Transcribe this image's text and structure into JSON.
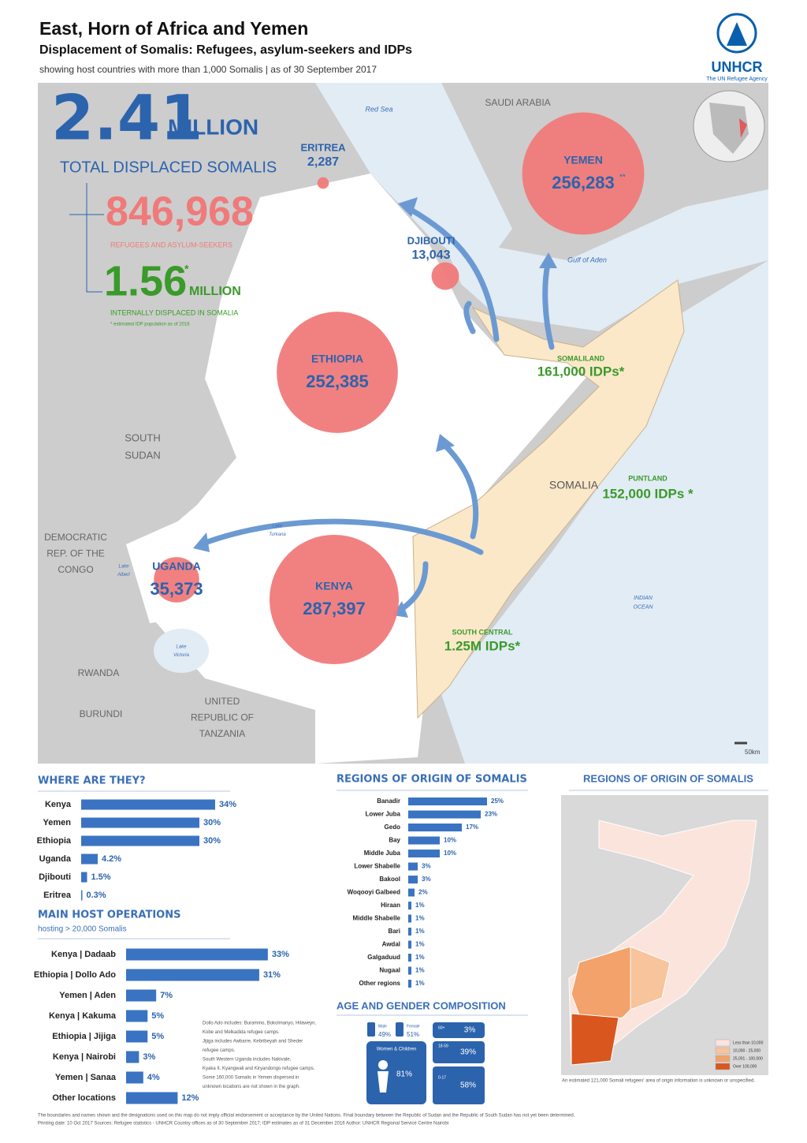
{
  "header": {
    "title": "East, Horn of Africa and Yemen",
    "subtitle": "Displacement of Somalis: Refugees, asylum-seekers and IDPs",
    "note": "showing host countries with more than 1,000 Somalis | as of 30 September 2017",
    "logo": "UNHCR",
    "logo_tagline": "The UN Refugee Agency"
  },
  "stats": {
    "total": "2.41",
    "total_unit": "MILLION",
    "total_label": "TOTAL DISPLACED SOMALIS",
    "refugees": "846,968",
    "refugees_label": "REFUGEES AND ASYLUM-SEEKERS",
    "idps": "1.56",
    "idps_star": "*",
    "idps_unit": "MILLION",
    "idps_label": "INTERNALLY DISPLACED IN SOMALIA",
    "idps_note": "* estimated IDP population as of 2016"
  },
  "map": {
    "hosts": [
      {
        "name": "ERITREA",
        "value": 2287,
        "value_label": "2,287"
      },
      {
        "name": "YEMEN",
        "value": 256283,
        "value_label": "256,283",
        "value_note": "**"
      },
      {
        "name": "DJIBOUTI",
        "value": 13043,
        "value_label": "13,043"
      },
      {
        "name": "ETHIOPIA",
        "value": 252385,
        "value_label": "252,385"
      },
      {
        "name": "UGANDA",
        "value": 35373,
        "value_label": "35,373"
      },
      {
        "name": "KENYA",
        "value": 287397,
        "value_label": "287,397"
      }
    ],
    "idp_regions": [
      {
        "name": "SOMALILAND",
        "label": "161,000 IDPs*"
      },
      {
        "name": "PUNTLAND",
        "label": "152,000 IDPs *"
      },
      {
        "name": "SOUTH CENTRAL",
        "label": "1.25M IDPs*"
      }
    ],
    "labels": [
      {
        "lines": [
          "Red Sea"
        ]
      },
      {
        "lines": [
          "SAUDI ARABIA"
        ]
      },
      {
        "lines": [
          "Gulf of Aden"
        ]
      },
      {
        "lines": [
          "SOUTH",
          "SUDAN"
        ]
      },
      {
        "lines": [
          "DEMOCRATIC",
          "REP. OF THE",
          "CONGO"
        ]
      },
      {
        "lines": [
          "RWANDA"
        ]
      },
      {
        "lines": [
          "BURUNDI"
        ]
      },
      {
        "lines": [
          "UNITED",
          "REPUBLIC OF",
          "TANZANIA"
        ]
      },
      {
        "lines": [
          "SOMALIA"
        ]
      },
      {
        "lines": [
          "INDIAN",
          "OCEAN"
        ]
      },
      {
        "lines": [
          "Lake",
          "Victoria"
        ]
      },
      {
        "lines": [
          "Lake",
          "Turkana"
        ]
      },
      {
        "lines": [
          "Lake",
          "Albert"
        ]
      }
    ],
    "scale": "50km"
  },
  "chart_data": [
    {
      "type": "bar",
      "title": "WHERE ARE THEY?",
      "categories": [
        "Kenya",
        "Yemen",
        "Ethiopia",
        "Uganda",
        "Djibouti",
        "Eritrea"
      ],
      "values": [
        34,
        30,
        30,
        4.2,
        1.5,
        0.3
      ],
      "value_labels": [
        "34%",
        "30%",
        "30%",
        "4.2%",
        "1.5%",
        "0.3%"
      ],
      "color": "#3a73c2"
    },
    {
      "type": "bar",
      "title": "MAIN HOST OPERATIONS",
      "subtitle": "hosting > 20,000 Somalis",
      "categories": [
        "Kenya | Dadaab",
        "Ethiopia | Dollo Ado",
        "Yemen | Aden",
        "Kenya | Kakuma",
        "Ethiopia | Jijiga",
        "Kenya | Nairobi",
        "Yemen | Sanaa",
        "Other locations"
      ],
      "values": [
        33,
        31,
        7,
        5,
        5,
        3,
        4,
        12
      ],
      "value_labels": [
        "33%",
        "31%",
        "7%",
        "5%",
        "5%",
        "3%",
        "4%",
        "12%"
      ],
      "color": "#3a73c2"
    },
    {
      "type": "bar",
      "title": "REGIONS OF ORIGIN OF SOMALIS",
      "categories": [
        "Banadir",
        "Lower Juba",
        "Gedo",
        "Bay",
        "Middle Juba",
        "Lower Shabelle",
        "Bakool",
        "Woqooyi Galbeed",
        "Hiraan",
        "Middle Shabelle",
        "Bari",
        "Awdal",
        "Galgaduud",
        "Nugaal",
        "Other regions"
      ],
      "values": [
        25,
        23,
        17,
        10,
        10,
        3,
        3,
        2,
        1,
        1,
        1,
        1,
        1,
        1,
        1
      ],
      "value_labels": [
        "25%",
        "23%",
        "17%",
        "10%",
        "10%",
        "3%",
        "3%",
        "2%",
        "1%",
        "1%",
        "1%",
        "1%",
        "1%",
        "1%",
        "1%"
      ],
      "color": "#3a73c2"
    }
  ],
  "age_gender": {
    "title": "AGE AND GENDER COMPOSITION",
    "male": "Male",
    "male_pct": "49%",
    "female": "Female",
    "female_pct": "51%",
    "women_children": "Women & Children",
    "women_children_pct": "81%",
    "groups": [
      {
        "age": "60+",
        "pct": "3%"
      },
      {
        "age": "18-59",
        "pct": "39%"
      },
      {
        "age": "0-17",
        "pct": "58%"
      }
    ]
  },
  "origin_map": {
    "title": "REGIONS OF ORIGIN OF SOMALIS",
    "legend": [
      {
        "label": "Less than 10,000",
        "color": "#fbe4dc"
      },
      {
        "label": "10,000 - 25,000",
        "color": "#f7c49c"
      },
      {
        "label": "25,001 - 100,000",
        "color": "#f2a26a"
      },
      {
        "label": "Over 100,000",
        "color": "#d9561f"
      }
    ],
    "note": "An estimated 121,000 Somali refugees' area of origin information is unknown or unspecified."
  },
  "notes": {
    "host_operations": [
      "Dollo Ado includes: Buramino, Bokolmanyo, Hilaweyn,",
      "Kobe and Melkadida refugee camps.",
      "Jijiga includes Awbarre, Kebribeyah and Sheder",
      "refugee camps.",
      "South Western Uganda includes Nakivale,",
      "Kyaka II, Kyangwali and Kiryandongo refugee camps.",
      "Some 160,000 Somalis in Yemen dispersed in",
      "unknown locations are not shown in the graph."
    ],
    "footer": "The boundaries and names shown and the designations used on this map do not imply official endorsement or acceptance by the United Nations. Final boundary between the Republic of Sudan and the Republic of South Sudan has not yet been determined.",
    "footer2": "Printing date: 10 Oct 2017   Sources: Refugee statistics - UNHCR Country offices as of 30 September 2017; IDP estimates as of 31 December 2016   Author: UNHCR Regional Service Centre Nairobi"
  }
}
